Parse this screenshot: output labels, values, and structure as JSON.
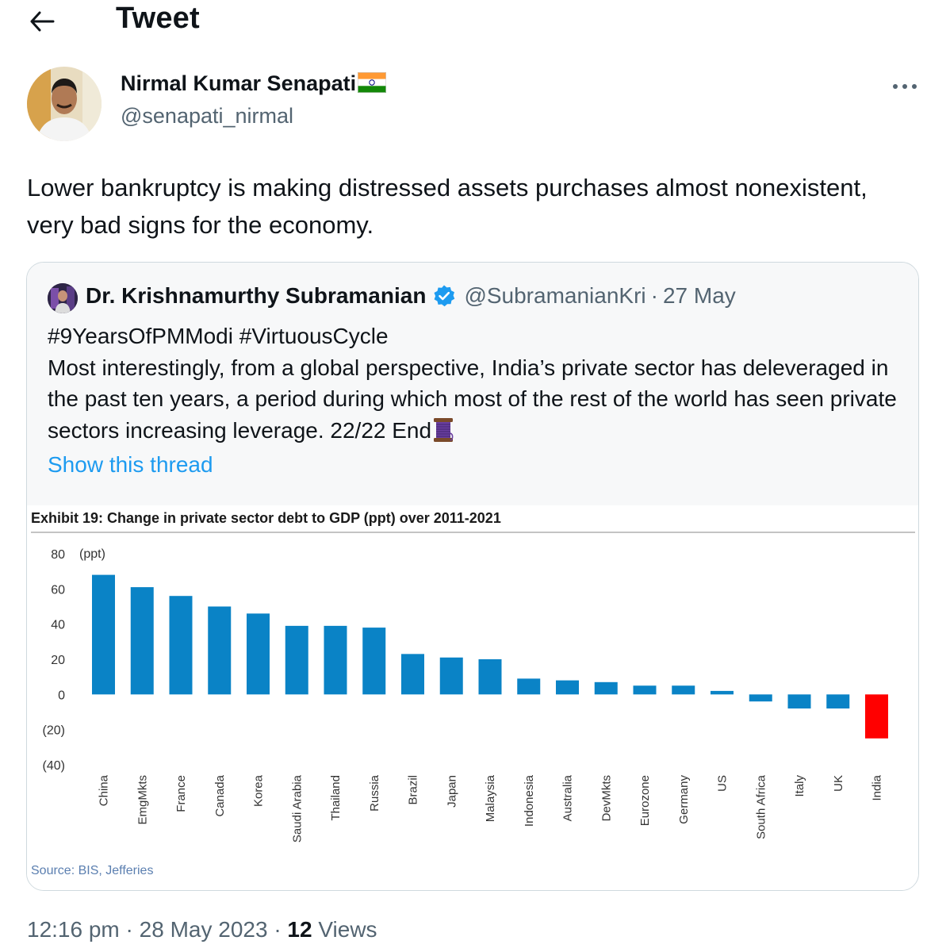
{
  "header": {
    "title": "Tweet"
  },
  "author": {
    "name": "Nirmal Kumar Senapati",
    "handle": "@senapati_nirmal"
  },
  "tweet": {
    "text": "Lower bankruptcy is making distressed assets purchases almost nonexistent, very bad signs for the economy."
  },
  "quoted": {
    "name": "Dr. Krishnamurthy Subramanian",
    "handle": "@SubramanianKri",
    "separator": "·",
    "date": "27 May",
    "hashtags": "#9YearsOfPMModi #VirtuousCycle",
    "body": "Most interestingly, from a global perspective, India’s private sector has deleveraged in the past ten years, a period during which most of the rest of the world has seen private sectors increasing leverage. 22/22 End",
    "show_thread": "Show this thread"
  },
  "meta": {
    "time": "12:16 pm",
    "separator": "·",
    "date": "28 May 2023",
    "separator2": "·",
    "views_count": "12",
    "views_label": "Views"
  },
  "icons": {
    "back": "arrow-left-icon",
    "more": "more-horizontal-icon",
    "verified": "verified-badge-icon",
    "flag": "india-flag-icon",
    "thread": "spool-of-thread-icon"
  },
  "colors": {
    "accent": "#1d9bf0",
    "bar": "#0a83c6",
    "india_bar": "#ff0000",
    "muted": "#536471"
  },
  "chart_data": {
    "type": "bar",
    "title": "Exhibit 19: Change in private sector debt to GDP (ppt) over 2011-2021",
    "unit_label": "(ppt)",
    "source": "Source: BIS, Jefferies",
    "categories": [
      "China",
      "EmgMkts",
      "France",
      "Canada",
      "Korea",
      "Saudi Arabia",
      "Thailand",
      "Russia",
      "Brazil",
      "Japan",
      "Malaysia",
      "Indonesia",
      "Australia",
      "DevMkts",
      "Eurozone",
      "Germany",
      "US",
      "South Africa",
      "Italy",
      "UK",
      "India"
    ],
    "values": [
      68,
      61,
      56,
      50,
      46,
      39,
      39,
      38,
      23,
      21,
      20,
      9,
      8,
      7,
      5,
      5,
      2,
      -4,
      -8,
      -8,
      -25
    ],
    "ylim": [
      -40,
      80
    ],
    "yticks": [
      80,
      60,
      40,
      20,
      0,
      -20,
      -40
    ],
    "ytick_labels": [
      "80",
      "60",
      "40",
      "20",
      "0",
      "(20)",
      "(40)"
    ],
    "highlight_category": "India"
  }
}
